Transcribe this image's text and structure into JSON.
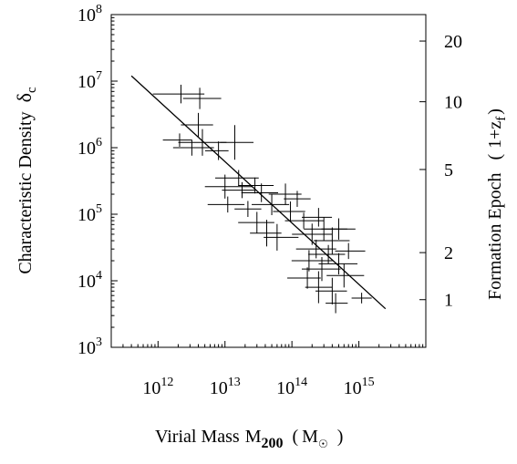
{
  "chart_data": {
    "type": "scatter",
    "x_axis": {
      "title": "Virial Mass",
      "symbol": "M",
      "symbol_sub": "200",
      "unit_open": "(",
      "unit": "M",
      "unit_sub": "☉",
      "unit_close": ")",
      "scale": "log",
      "range": [
        200000000000,
        10000000000000000
      ],
      "ticks": [
        {
          "value": 1000000000000,
          "base": "10",
          "exp": "12"
        },
        {
          "value": 10000000000000,
          "base": "10",
          "exp": "13"
        },
        {
          "value": 100000000000000,
          "base": "10",
          "exp": "14"
        },
        {
          "value": 1000000000000000,
          "base": "10",
          "exp": "15"
        }
      ]
    },
    "y_axis": {
      "title": "Characteristic Density",
      "symbol": "δ",
      "symbol_sub": "c",
      "scale": "log",
      "range": [
        1000,
        100000000
      ],
      "ticks": [
        {
          "value": 1000,
          "base": "10",
          "exp": "3"
        },
        {
          "value": 10000,
          "base": "10",
          "exp": "4"
        },
        {
          "value": 100000,
          "base": "10",
          "exp": "5"
        },
        {
          "value": 1000000,
          "base": "10",
          "exp": "6"
        },
        {
          "value": 10000000,
          "base": "10",
          "exp": "7"
        },
        {
          "value": 100000000,
          "base": "10",
          "exp": "8"
        }
      ]
    },
    "y2_axis": {
      "title": "Formation Epoch",
      "expr_open": "(",
      "expr": "1+z",
      "expr_sub": "f",
      "expr_close": ")",
      "scale": "log",
      "ticks": [
        {
          "label": "1",
          "primary_y": 5200
        },
        {
          "label": "2",
          "primary_y": 26500
        },
        {
          "label": "5",
          "primary_y": 470000
        },
        {
          "label": "10",
          "primary_y": 4900000
        },
        {
          "label": "20",
          "primary_y": 40000000
        }
      ]
    },
    "fit_line": {
      "x": [
        400000000000,
        2500000000000000
      ],
      "y": [
        12000000,
        3800
      ]
    },
    "grid": false,
    "legend": "none",
    "series": [
      {
        "style": "cross",
        "points": [
          {
            "x": 2200000000000,
            "y": 6400000,
            "xerr": [
              0.42,
              0.35
            ],
            "yerr": [
              0.14,
              0.14
            ]
          },
          {
            "x": 4200000000000,
            "y": 5500000,
            "xerr": [
              0.25,
              0.32
            ],
            "yerr": [
              0.16,
              0.16
            ]
          },
          {
            "x": 4000000000000,
            "y": 2200000,
            "xerr": [
              0.26,
              0.22
            ],
            "yerr": [
              0.18,
              0.18
            ]
          },
          {
            "x": 4600000000000,
            "y": 1200000,
            "xerr": [
              0.36,
              0.36
            ],
            "yerr": [
              0.2,
              0.2
            ]
          },
          {
            "x": 2100000000000,
            "y": 1300000,
            "xerr": [
              0.25,
              0.18
            ],
            "yerr": [
              0.1,
              0.1
            ]
          },
          {
            "x": 3200000000000,
            "y": 1000000,
            "xerr": [
              0.28,
              0.33
            ],
            "yerr": [
              0.12,
              0.12
            ]
          },
          {
            "x": 14000000000000,
            "y": 1200000,
            "xerr": [
              0.22,
              0.28
            ],
            "yerr": [
              0.26,
              0.26
            ]
          },
          {
            "x": 8000000000000,
            "y": 900000,
            "xerr": [
              0.2,
              0.15
            ],
            "yerr": [
              0.14,
              0.14
            ]
          },
          {
            "x": 16000000000000,
            "y": 350000,
            "xerr": [
              0.35,
              0.3
            ],
            "yerr": [
              0.12,
              0.12
            ]
          },
          {
            "x": 10000000000000,
            "y": 260000,
            "xerr": [
              0.3,
              0.4
            ],
            "yerr": [
              0.18,
              0.18
            ]
          },
          {
            "x": 18000000000000,
            "y": 230000,
            "xerr": [
              0.3,
              0.2
            ],
            "yerr": [
              0.12,
              0.12
            ]
          },
          {
            "x": 28000000000000,
            "y": 270000,
            "xerr": [
              0.25,
              0.28
            ],
            "yerr": [
              0.12,
              0.12
            ]
          },
          {
            "x": 11000000000000,
            "y": 140000,
            "xerr": [
              0.3,
              0.25
            ],
            "yerr": [
              0.12,
              0.12
            ]
          },
          {
            "x": 22000000000000,
            "y": 120000,
            "xerr": [
              0.2,
              0.2
            ],
            "yerr": [
              0.12,
              0.12
            ]
          },
          {
            "x": 35000000000000,
            "y": 210000,
            "xerr": [
              0.3,
              0.25
            ],
            "yerr": [
              0.14,
              0.14
            ]
          },
          {
            "x": 50000000000000,
            "y": 140000,
            "xerr": [
              0.3,
              0.26
            ],
            "yerr": [
              0.16,
              0.16
            ]
          },
          {
            "x": 30000000000000,
            "y": 75000,
            "xerr": [
              0.28,
              0.26
            ],
            "yerr": [
              0.16,
              0.16
            ]
          },
          {
            "x": 42000000000000,
            "y": 52000,
            "xerr": [
              0.25,
              0.22
            ],
            "yerr": [
              0.2,
              0.2
            ]
          },
          {
            "x": 80000000000000,
            "y": 200000,
            "xerr": [
              0.25,
              0.24
            ],
            "yerr": [
              0.16,
              0.16
            ]
          },
          {
            "x": 120000000000000,
            "y": 170000,
            "xerr": [
              0.2,
              0.2
            ],
            "yerr": [
              0.12,
              0.12
            ]
          },
          {
            "x": 95000000000000,
            "y": 110000,
            "xerr": [
              0.26,
              0.22
            ],
            "yerr": [
              0.15,
              0.15
            ]
          },
          {
            "x": 60000000000000,
            "y": 45000,
            "xerr": [
              0.2,
              0.32
            ],
            "yerr": [
              0.2,
              0.2
            ]
          },
          {
            "x": 150000000000000,
            "y": 80000,
            "xerr": [
              0.28,
              0.3
            ],
            "yerr": [
              0.12,
              0.12
            ]
          },
          {
            "x": 200000000000000,
            "y": 50000,
            "xerr": [
              0.3,
              0.3
            ],
            "yerr": [
              0.16,
              0.16
            ]
          },
          {
            "x": 250000000000000,
            "y": 90000,
            "xerr": [
              0.25,
              0.2
            ],
            "yerr": [
              0.14,
              0.14
            ]
          },
          {
            "x": 300000000000000,
            "y": 60000,
            "xerr": [
              0.3,
              0.35
            ],
            "yerr": [
              0.18,
              0.18
            ]
          },
          {
            "x": 400000000000000,
            "y": 40000,
            "xerr": [
              0.28,
              0.26
            ],
            "yerr": [
              0.2,
              0.2
            ]
          },
          {
            "x": 350000000000000,
            "y": 25000,
            "xerr": [
              0.3,
              0.25
            ],
            "yerr": [
              0.14,
              0.14
            ]
          },
          {
            "x": 500000000000000,
            "y": 60000,
            "xerr": [
              0.26,
              0.25
            ],
            "yerr": [
              0.16,
              0.16
            ]
          },
          {
            "x": 230000000000000,
            "y": 30000,
            "xerr": [
              0.3,
              0.3
            ],
            "yerr": [
              0.14,
              0.14
            ]
          },
          {
            "x": 180000000000000,
            "y": 20000,
            "xerr": [
              0.26,
              0.35
            ],
            "yerr": [
              0.16,
              0.16
            ]
          },
          {
            "x": 280000000000000,
            "y": 15000,
            "xerr": [
              0.3,
              0.28
            ],
            "yerr": [
              0.18,
              0.18
            ]
          },
          {
            "x": 500000000000000,
            "y": 18000,
            "xerr": [
              0.3,
              0.28
            ],
            "yerr": [
              0.16,
              0.16
            ]
          },
          {
            "x": 600000000000000,
            "y": 12000,
            "xerr": [
              0.26,
              0.3
            ],
            "yerr": [
              0.18,
              0.18
            ]
          },
          {
            "x": 170000000000000,
            "y": 11000,
            "xerr": [
              0.3,
              0.2
            ],
            "yerr": [
              0.16,
              0.16
            ]
          },
          {
            "x": 250000000000000,
            "y": 8000,
            "xerr": [
              0.2,
              0.2
            ],
            "yerr": [
              0.24,
              0.24
            ]
          },
          {
            "x": 400000000000000,
            "y": 7000,
            "xerr": [
              0.25,
              0.22
            ],
            "yerr": [
              0.2,
              0.2
            ]
          },
          {
            "x": 450000000000000,
            "y": 4600,
            "xerr": [
              0.15,
              0.18
            ],
            "yerr": [
              0.15,
              0.15
            ]
          },
          {
            "x": 1100000000000000,
            "y": 5500,
            "xerr": [
              0.15,
              0.15
            ],
            "yerr": [
              0.08,
              0.08
            ]
          },
          {
            "x": 700000000000000,
            "y": 28000,
            "xerr": [
              0.2,
              0.25
            ],
            "yerr": [
              0.12,
              0.12
            ]
          }
        ]
      }
    ]
  }
}
